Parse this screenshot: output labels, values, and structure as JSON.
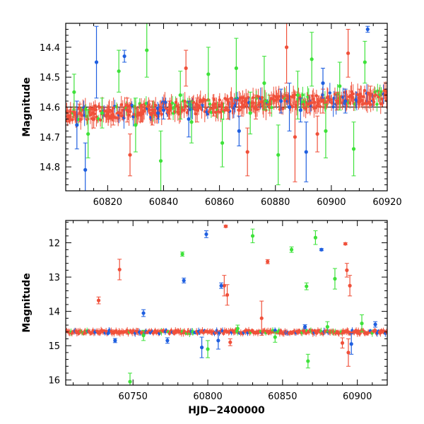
{
  "colors": {
    "blue": "#1f5fe0",
    "green": "#3ee23a",
    "red": "#f0503a",
    "baseline": "#000000"
  },
  "chart_data": [
    {
      "type": "scatter",
      "panel": "top",
      "title": "",
      "xlabel": "",
      "ylabel": "Magnitude",
      "xlim": [
        60805,
        60920
      ],
      "ylim": [
        14.88,
        14.32
      ],
      "y_inverted": true,
      "xticks": [
        60820,
        60840,
        60860,
        60880,
        60900,
        60920
      ],
      "yticks": [
        14.4,
        14.5,
        14.6,
        14.7,
        14.8
      ],
      "baseline_y": 14.6,
      "series": [
        {
          "color_key": "red",
          "points": [
            {
              "x": 60806,
              "y": 14.63,
              "err": 0.02
            },
            {
              "x": 60810,
              "y": 14.62,
              "err": 0.03
            },
            {
              "x": 60815,
              "y": 14.64,
              "err": 0.03
            },
            {
              "x": 60822,
              "y": 14.63,
              "err": 0.03
            },
            {
              "x": 60827,
              "y": 14.61,
              "err": 0.04
            },
            {
              "x": 60832,
              "y": 14.62,
              "err": 0.03
            },
            {
              "x": 60836,
              "y": 14.62,
              "err": 0.04
            },
            {
              "x": 60842,
              "y": 14.61,
              "err": 0.03
            },
            {
              "x": 60848,
              "y": 14.47,
              "err": 0.06
            },
            {
              "x": 60852,
              "y": 14.61,
              "err": 0.04
            },
            {
              "x": 60858,
              "y": 14.6,
              "err": 0.03
            },
            {
              "x": 60863,
              "y": 14.61,
              "err": 0.03
            },
            {
              "x": 60868,
              "y": 14.6,
              "err": 0.03
            },
            {
              "x": 60873,
              "y": 14.6,
              "err": 0.04
            },
            {
              "x": 60878,
              "y": 14.59,
              "err": 0.03
            },
            {
              "x": 60884,
              "y": 14.4,
              "err": 0.12
            },
            {
              "x": 60887,
              "y": 14.7,
              "err": 0.15
            },
            {
              "x": 60892,
              "y": 14.59,
              "err": 0.03
            },
            {
              "x": 60897,
              "y": 14.58,
              "err": 0.04
            },
            {
              "x": 60902,
              "y": 14.58,
              "err": 0.03
            },
            {
              "x": 60906,
              "y": 14.42,
              "err": 0.08
            },
            {
              "x": 60910,
              "y": 14.57,
              "err": 0.03
            },
            {
              "x": 60914,
              "y": 14.56,
              "err": 0.03
            },
            {
              "x": 60828,
              "y": 14.76,
              "err": 0.07
            },
            {
              "x": 60870,
              "y": 14.75,
              "err": 0.08
            },
            {
              "x": 60895,
              "y": 14.69,
              "err": 0.06
            }
          ]
        },
        {
          "color_key": "green",
          "points": [
            {
              "x": 60808,
              "y": 14.55,
              "err": 0.06
            },
            {
              "x": 60813,
              "y": 14.69,
              "err": 0.08
            },
            {
              "x": 60818,
              "y": 14.62,
              "err": 0.05
            },
            {
              "x": 60824,
              "y": 14.48,
              "err": 0.07
            },
            {
              "x": 60830,
              "y": 14.66,
              "err": 0.09
            },
            {
              "x": 60834,
              "y": 14.41,
              "err": 0.09
            },
            {
              "x": 60839,
              "y": 14.78,
              "err": 0.1
            },
            {
              "x": 60846,
              "y": 14.56,
              "err": 0.08
            },
            {
              "x": 60850,
              "y": 14.65,
              "err": 0.07
            },
            {
              "x": 60856,
              "y": 14.49,
              "err": 0.09
            },
            {
              "x": 60861,
              "y": 14.72,
              "err": 0.08
            },
            {
              "x": 60866,
              "y": 14.47,
              "err": 0.1
            },
            {
              "x": 60871,
              "y": 14.62,
              "err": 0.07
            },
            {
              "x": 60876,
              "y": 14.52,
              "err": 0.09
            },
            {
              "x": 60881,
              "y": 14.76,
              "err": 0.1
            },
            {
              "x": 60888,
              "y": 14.56,
              "err": 0.08
            },
            {
              "x": 60893,
              "y": 14.44,
              "err": 0.09
            },
            {
              "x": 60898,
              "y": 14.68,
              "err": 0.09
            },
            {
              "x": 60903,
              "y": 14.53,
              "err": 0.08
            },
            {
              "x": 60908,
              "y": 14.74,
              "err": 0.09
            },
            {
              "x": 60912,
              "y": 14.45,
              "err": 0.07
            }
          ]
        },
        {
          "color_key": "blue",
          "points": [
            {
              "x": 60809,
              "y": 14.66,
              "err": 0.08
            },
            {
              "x": 60812,
              "y": 14.81,
              "err": 0.09
            },
            {
              "x": 60816,
              "y": 14.45,
              "err": 0.12
            },
            {
              "x": 60826,
              "y": 14.43,
              "err": 0.02
            },
            {
              "x": 60838,
              "y": 14.62,
              "err": 0.02
            },
            {
              "x": 60840,
              "y": 14.61,
              "err": 0.03
            },
            {
              "x": 60849,
              "y": 14.64,
              "err": 0.06
            },
            {
              "x": 60867,
              "y": 14.68,
              "err": 0.05
            },
            {
              "x": 60882,
              "y": 14.58,
              "err": 0.04
            },
            {
              "x": 60885,
              "y": 14.6,
              "err": 0.08
            },
            {
              "x": 60889,
              "y": 14.61,
              "err": 0.04
            },
            {
              "x": 60891,
              "y": 14.75,
              "err": 0.1
            },
            {
              "x": 60897,
              "y": 14.52,
              "err": 0.05
            },
            {
              "x": 60905,
              "y": 14.58,
              "err": 0.04
            },
            {
              "x": 60913,
              "y": 14.34,
              "err": 0.01
            }
          ]
        }
      ]
    },
    {
      "type": "scatter",
      "panel": "bottom",
      "title": "",
      "xlabel": "HJD−2400000",
      "ylabel": "Magnitude",
      "xlim": [
        60705,
        60920
      ],
      "ylim": [
        16.15,
        11.35
      ],
      "y_inverted": true,
      "xticks": [
        60750,
        60800,
        60850,
        60900
      ],
      "yticks": [
        12,
        13,
        14,
        15,
        16
      ],
      "baseline_y": 14.6,
      "series": [
        {
          "color_key": "red",
          "points": [
            {
              "x": 60727,
              "y": 13.68,
              "err": 0.1
            },
            {
              "x": 60741,
              "y": 12.78,
              "err": 0.3
            },
            {
              "x": 60812,
              "y": 11.52,
              "err": 0.03
            },
            {
              "x": 60811,
              "y": 13.25,
              "err": 0.3
            },
            {
              "x": 60813,
              "y": 13.52,
              "err": 0.3
            },
            {
              "x": 60836,
              "y": 14.2,
              "err": 0.5
            },
            {
              "x": 60840,
              "y": 12.55,
              "err": 0.06
            },
            {
              "x": 60892,
              "y": 12.03,
              "err": 0.03
            },
            {
              "x": 60893,
              "y": 12.8,
              "err": 0.2
            },
            {
              "x": 60895,
              "y": 13.25,
              "err": 0.3
            },
            {
              "x": 60894,
              "y": 15.2,
              "err": 0.4
            },
            {
              "x": 60890,
              "y": 14.92,
              "err": 0.15
            },
            {
              "x": 60815,
              "y": 14.9,
              "err": 0.1
            }
          ]
        },
        {
          "color_key": "green",
          "points": [
            {
              "x": 60783,
              "y": 12.33,
              "err": 0.06
            },
            {
              "x": 60830,
              "y": 11.8,
              "err": 0.2
            },
            {
              "x": 60856,
              "y": 12.2,
              "err": 0.08
            },
            {
              "x": 60866,
              "y": 13.27,
              "err": 0.1
            },
            {
              "x": 60872,
              "y": 11.85,
              "err": 0.2
            },
            {
              "x": 60885,
              "y": 13.05,
              "err": 0.3
            },
            {
              "x": 60903,
              "y": 14.35,
              "err": 0.25
            },
            {
              "x": 60748,
              "y": 16.05,
              "err": 0.25
            },
            {
              "x": 60800,
              "y": 15.1,
              "err": 0.25
            },
            {
              "x": 60867,
              "y": 15.45,
              "err": 0.2
            },
            {
              "x": 60757,
              "y": 14.7,
              "err": 0.15
            },
            {
              "x": 60820,
              "y": 14.5,
              "err": 0.1
            },
            {
              "x": 60845,
              "y": 14.75,
              "err": 0.15
            },
            {
              "x": 60880,
              "y": 14.45,
              "err": 0.15
            }
          ]
        },
        {
          "color_key": "blue",
          "points": [
            {
              "x": 60799,
              "y": 11.75,
              "err": 0.1
            },
            {
              "x": 60784,
              "y": 13.1,
              "err": 0.07
            },
            {
              "x": 60876,
              "y": 12.2,
              "err": 0.03
            },
            {
              "x": 60757,
              "y": 14.05,
              "err": 0.1
            },
            {
              "x": 60738,
              "y": 14.85,
              "err": 0.06
            },
            {
              "x": 60773,
              "y": 14.85,
              "err": 0.08
            },
            {
              "x": 60796,
              "y": 15.05,
              "err": 0.3
            },
            {
              "x": 60809,
              "y": 13.25,
              "err": 0.08
            },
            {
              "x": 60807,
              "y": 14.85,
              "err": 0.25
            },
            {
              "x": 60865,
              "y": 14.45,
              "err": 0.06
            },
            {
              "x": 60896,
              "y": 14.95,
              "err": 0.3
            },
            {
              "x": 60912,
              "y": 14.38,
              "err": 0.08
            }
          ]
        }
      ]
    }
  ]
}
